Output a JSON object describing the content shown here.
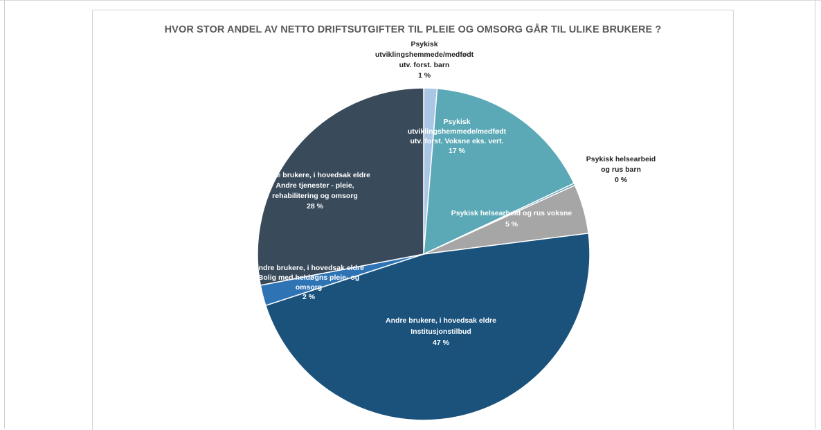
{
  "chart_data": {
    "type": "pie",
    "title": "HVOR STOR ANDEL AV NETTO DRIFTSUTGIFTER TIL PLEIE OG OMSORG GÅR TIL ULIKE BRUKERE ?",
    "categories": [
      "Psykisk utviklingshemmede/medfødt utv. forst. barn",
      "Psykisk utviklingshemmede/medfødt utv. forst. Voksne eks. vert.",
      "Psykisk helsearbeid og rus barn",
      "Psykisk helsearbeid og rus voksne",
      "Andre brukere, i hovedsak eldre Institusjonstilbud",
      "Andre brukere, i hovedsak eldre Bolig med heldøgns pleie- og omsorg",
      "Andre brukere, i hovedsak eldre Andre tjenester - pleie, rehabilitering og omsorg"
    ],
    "values": [
      1.3,
      16.7,
      0.2,
      4.8,
      47.0,
      2.0,
      28.0
    ],
    "colors": [
      "#a9c6e4",
      "#5ba9b6",
      "#4a8fa8",
      "#a6a6a6",
      "#1a527c",
      "#2e74b5",
      "#394a5a"
    ],
    "labels": [
      {
        "lines": [
          "Psykisk",
          "utviklingshemmede/medfødt",
          "utv. forst. barn",
          "1 %"
        ],
        "color": "#1f1f1f"
      },
      {
        "lines": [
          "Psykisk",
          "utviklingshemmede/medfødt",
          "utv. forst. Voksne eks. vert.",
          "17 %"
        ],
        "color": "#ffffff"
      },
      {
        "lines": [
          "Psykisk helsearbeid",
          "og rus barn",
          "0 %"
        ],
        "color": "#1f1f1f"
      },
      {
        "lines": [
          "Psykisk helsearbeid og rus voksne",
          "5 %"
        ],
        "color": "#ffffff"
      },
      {
        "lines": [
          "Andre brukere, i hovedsak eldre",
          "Institusjonstilbud",
          "47 %"
        ],
        "color": "#ffffff"
      },
      {
        "lines": [
          "Andre brukere, i hovedsak eldre",
          "Bolig med heldøgns pleie- og",
          "omsorg",
          "2 %"
        ],
        "color": "#ffffff"
      },
      {
        "lines": [
          "Andre brukere, i hovedsak eldre",
          "Andre tjenester - pleie,",
          "rehabilitering og omsorg",
          "28 %"
        ],
        "color": "#ffffff"
      }
    ],
    "start_angle_deg": 0,
    "direction": "clockwise",
    "legend": "none"
  }
}
